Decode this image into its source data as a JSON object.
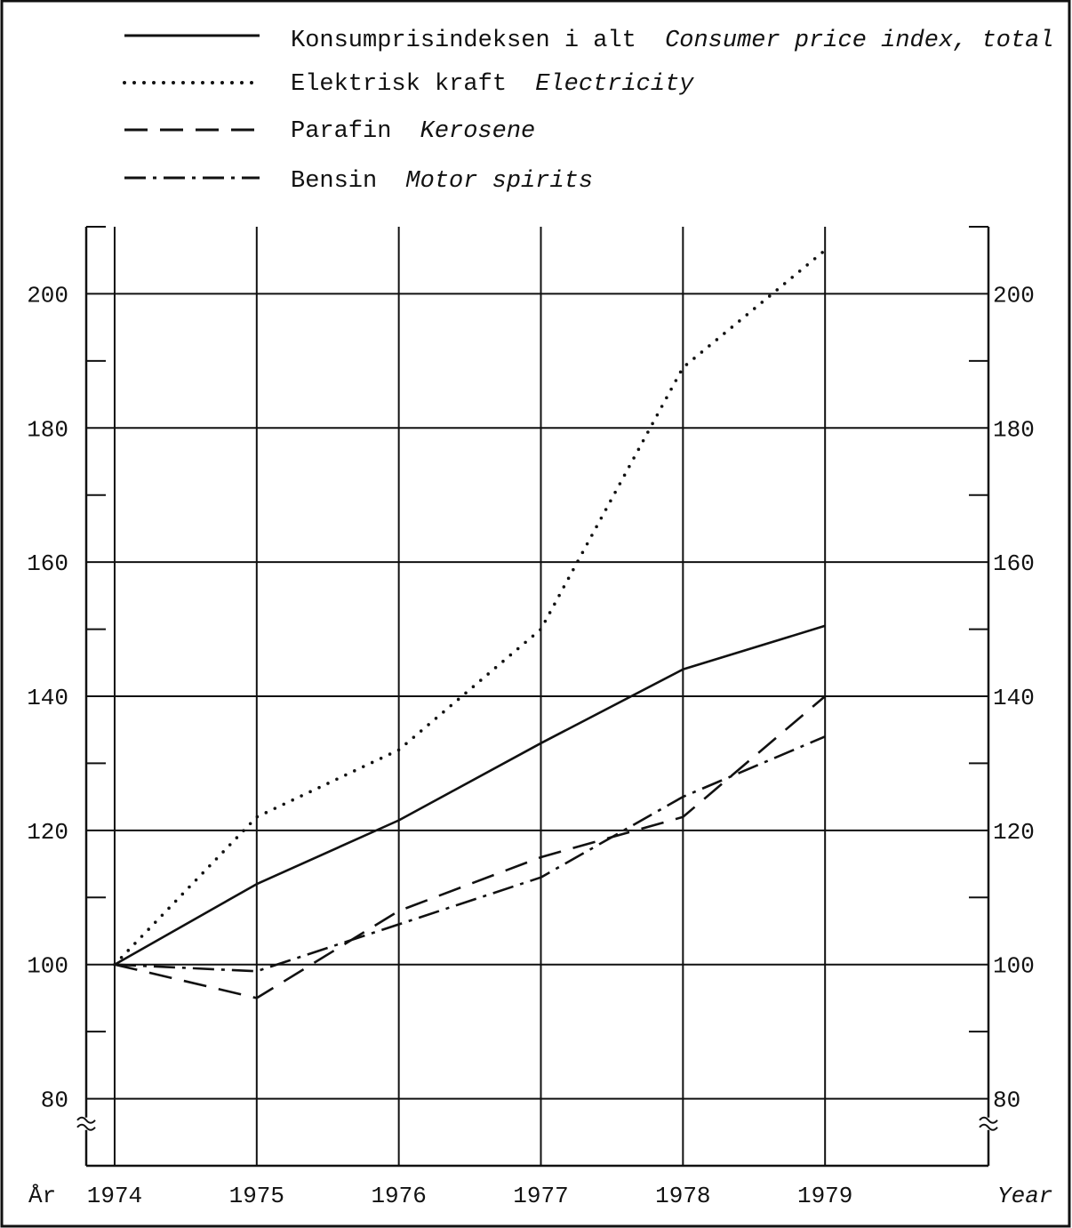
{
  "chart_data": {
    "type": "line",
    "title": "",
    "x": [
      1974,
      1975,
      1976,
      1977,
      1978,
      1979
    ],
    "xlabel_left": "År",
    "xlabel_right": "Year",
    "xtick_labels": [
      "1974",
      "1975",
      "1976",
      "1977",
      "1978",
      "1979"
    ],
    "yticks": [
      80,
      100,
      120,
      140,
      160,
      180,
      200
    ],
    "yticks_minor": [
      90,
      110,
      130,
      150,
      170,
      190
    ],
    "ylim": [
      70,
      210
    ],
    "xlim": [
      1973.8,
      1980.15
    ],
    "grid": true,
    "axis_break": true,
    "legend_placement": "top",
    "series": [
      {
        "name": "Konsumprisindeksen i alt",
        "name_en": "Consumer price index, total",
        "style": "solid",
        "values": [
          100,
          112,
          121.5,
          133,
          144,
          150.5
        ]
      },
      {
        "name": "Elektrisk kraft",
        "name_en": "Electricity",
        "style": "dotted",
        "values": [
          100,
          122,
          132,
          150,
          189,
          206.5
        ]
      },
      {
        "name": "Parafin",
        "name_en": "Kerosene",
        "style": "dashed",
        "values": [
          100,
          95,
          108,
          116,
          122,
          140
        ]
      },
      {
        "name": "Bensin",
        "name_en": "Motor spirits",
        "style": "dashdot",
        "values": [
          100,
          99,
          106,
          113,
          125,
          134
        ]
      }
    ]
  }
}
